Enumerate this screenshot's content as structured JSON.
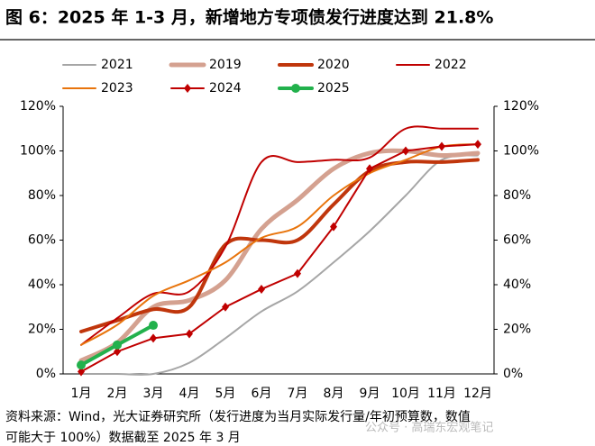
{
  "chart_data": {
    "type": "line",
    "title": "图 6：2025 年 1-3 月，新增地方专项债发行进度达到 21.8%",
    "categories": [
      "1月",
      "2月",
      "3月",
      "4月",
      "5月",
      "6月",
      "7月",
      "8月",
      "9月",
      "10月",
      "11月",
      "12月"
    ],
    "series": [
      {
        "name": "2021",
        "color": "#a6a6a6",
        "width": 2,
        "values": [
          0,
          0,
          0,
          5,
          16,
          28,
          37,
          50,
          64,
          80,
          96,
          98
        ]
      },
      {
        "name": "2019",
        "color": "#d4a190",
        "width": 5,
        "values": [
          6,
          14,
          30,
          33,
          42,
          65,
          78,
          92,
          99,
          100,
          98,
          99
        ]
      },
      {
        "name": "2020",
        "color": "#c0360c",
        "width": 4,
        "values": [
          19,
          24,
          29,
          30,
          58,
          60,
          60,
          76,
          91,
          95,
          95,
          96
        ]
      },
      {
        "name": "2022",
        "color": "#c00000",
        "width": 2,
        "values": [
          13,
          25,
          36,
          37,
          57,
          95,
          95,
          96,
          97,
          110,
          110,
          110
        ]
      },
      {
        "name": "2023",
        "color": "#e8740c",
        "width": 2,
        "values": [
          13,
          22,
          35,
          42,
          50,
          61,
          66,
          80,
          90,
          96,
          102,
          103
        ]
      },
      {
        "name": "2024",
        "color": "#c00000",
        "width": 2,
        "marker": "diamond",
        "values": [
          1,
          10,
          16,
          18,
          30,
          38,
          45,
          66,
          92,
          100,
          102,
          103
        ]
      },
      {
        "name": "2025",
        "color": "#22b14c",
        "width": 4,
        "marker": "circle",
        "values": [
          4,
          13,
          21.8,
          null,
          null,
          null,
          null,
          null,
          null,
          null,
          null,
          null
        ]
      }
    ],
    "ylim": [
      0,
      120
    ],
    "yticks": [
      {
        "value": 0,
        "label": "0%"
      },
      {
        "value": 20,
        "label": "20%"
      },
      {
        "value": 40,
        "label": "40%"
      },
      {
        "value": 60,
        "label": "60%"
      },
      {
        "value": 80,
        "label": "80%"
      },
      {
        "value": 100,
        "label": "100%"
      },
      {
        "value": 120,
        "label": "120%"
      }
    ],
    "y2lim": [
      0,
      120
    ],
    "y2ticks": [
      {
        "value": 0,
        "label": "0%"
      },
      {
        "value": 20,
        "label": "20%"
      },
      {
        "value": 40,
        "label": "40%"
      },
      {
        "value": 60,
        "label": "60%"
      },
      {
        "value": 80,
        "label": "80%"
      },
      {
        "value": 100,
        "label": "100%"
      },
      {
        "value": 120,
        "label": "120%"
      }
    ],
    "note": [
      "资料来源：Wind，光大证券研究所（发行进度为当月实际发行量/年初预算数，数值",
      "可能大于 100%）数据截至 2025 年 3 月"
    ],
    "watermark": "公众号 · 高瑞东宏观笔记"
  }
}
